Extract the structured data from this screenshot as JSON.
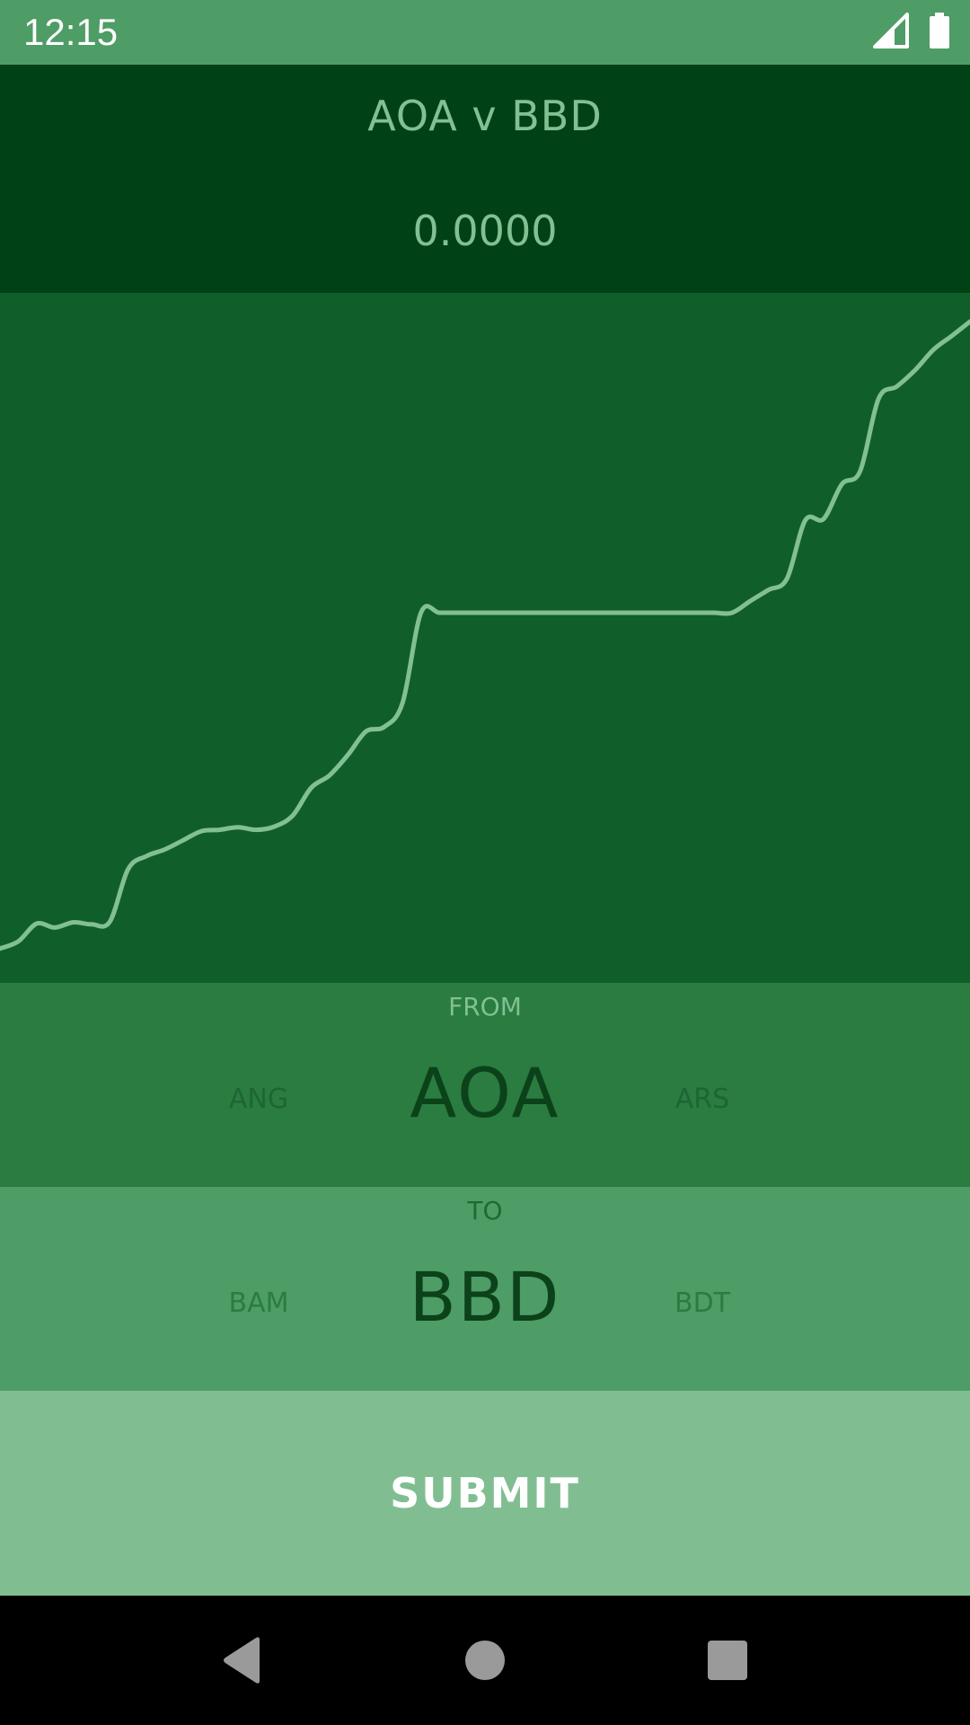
{
  "status_bar": {
    "time": "12:15",
    "icons": [
      "signal-icon",
      "battery-icon"
    ]
  },
  "header": {
    "pair_title": "AOA v BBD",
    "rate": "0.0000"
  },
  "chart_data": {
    "type": "line",
    "title": "",
    "xlabel": "",
    "ylabel": "",
    "grid": false,
    "legend": "none",
    "ylim": [
      0,
      100
    ],
    "series": [
      {
        "color": "#82c092",
        "values": [
          1.4,
          2.5,
          5.2,
          4.6,
          5.4,
          5.1,
          5.5,
          13.5,
          15.5,
          16.5,
          17.9,
          19.3,
          19.5,
          19.9,
          19.5,
          20.0,
          21.7,
          25.9,
          27.8,
          30.9,
          34.5,
          35.2,
          38.9,
          52.6,
          52.6,
          52.6,
          52.6,
          52.6,
          52.6,
          52.6,
          52.6,
          52.6,
          52.6,
          52.6,
          52.6,
          52.6,
          52.6,
          52.6,
          52.6,
          52.6,
          52.6,
          54.4,
          56.1,
          57.8,
          66.7,
          66.9,
          72.2,
          74.2,
          85.2,
          87.1,
          89.6,
          92.7,
          94.8,
          97.0
        ]
      }
    ]
  },
  "from_picker": {
    "label": "FROM",
    "prev": "ANG",
    "selected": "AOA",
    "next": "ARS"
  },
  "to_picker": {
    "label": "TO",
    "prev": "BAM",
    "selected": "BBD",
    "next": "BDT"
  },
  "submit": {
    "label": "SUBMIT"
  },
  "nav_bar": {
    "icons": [
      "back-icon",
      "home-icon",
      "recents-icon"
    ]
  },
  "colors": {
    "status_bar": "#4e9c66",
    "header": "#004116",
    "chart_bg": "#105f2b",
    "line": "#82c092",
    "from_bg": "#2a7c41",
    "to_bg": "#4e9c66",
    "submit_bg": "#80be91"
  }
}
